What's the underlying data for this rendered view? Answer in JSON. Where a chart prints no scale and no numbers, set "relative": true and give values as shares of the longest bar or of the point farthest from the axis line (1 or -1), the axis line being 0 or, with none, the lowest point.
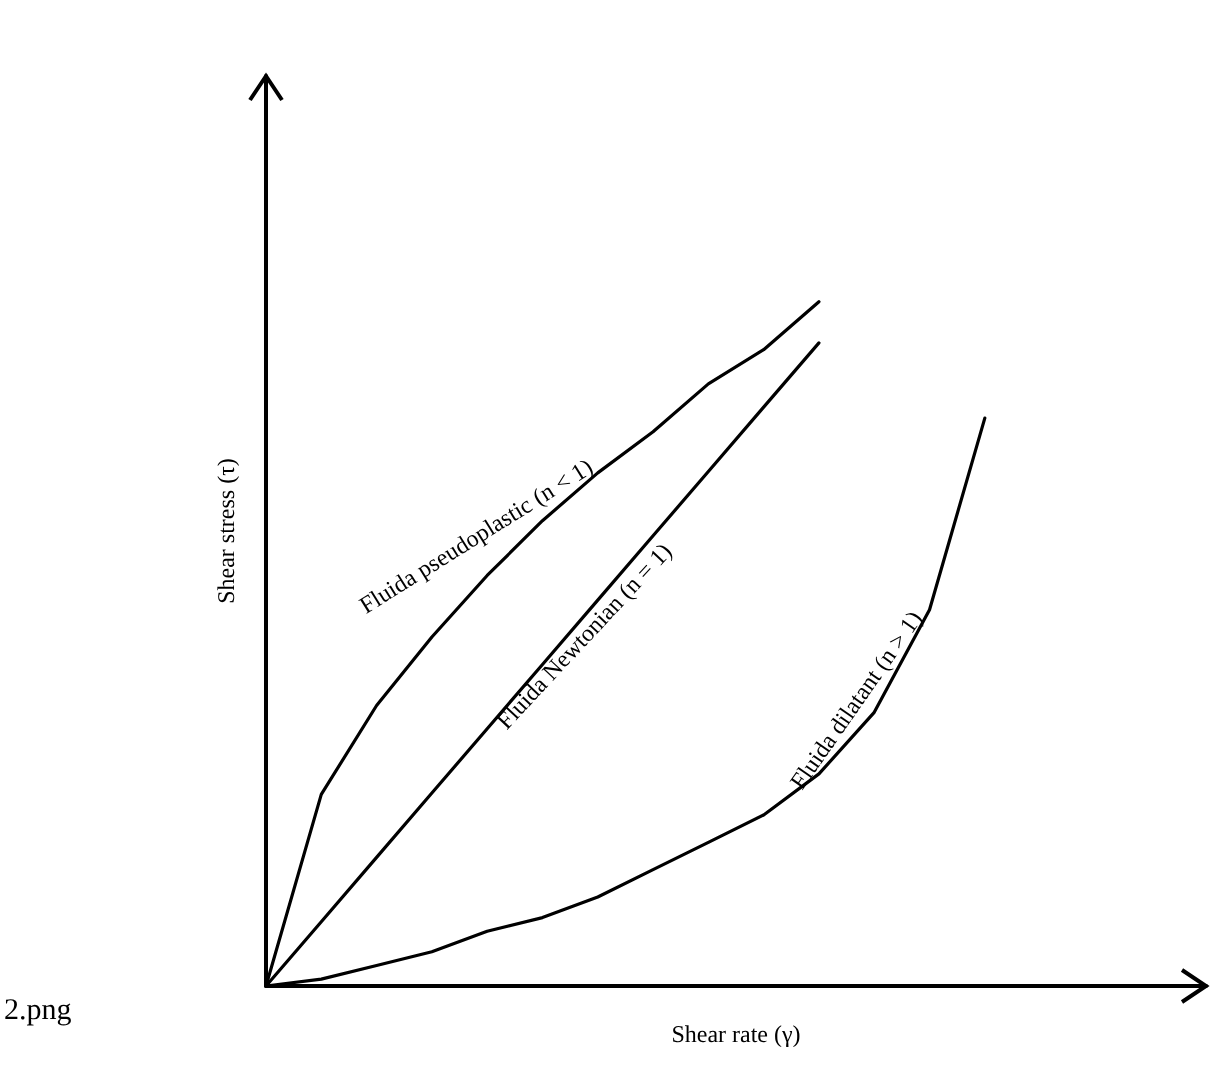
{
  "chart_data": {
    "type": "line",
    "relative": true,
    "xlabel": "Shear rate (γ)",
    "ylabel": "Shear stress (τ)",
    "grid": false,
    "marker": "none",
    "line_style": "solid",
    "categories": [
      null,
      null,
      null,
      null,
      null,
      null,
      null,
      null,
      null,
      null,
      null,
      null,
      null,
      null,
      null,
      null,
      null,
      null
    ],
    "series": [
      {
        "values": [
          0,
          0.28,
          0.41,
          0.51,
          0.6,
          0.68,
          0.75,
          0.81,
          0.88,
          0.93,
          1,
          null,
          null,
          null,
          null,
          null,
          null,
          null
        ],
        "color": "#000000"
      },
      {
        "values": [
          0,
          0.094,
          0.188,
          0.282,
          0.376,
          0.47,
          0.564,
          0.658,
          0.752,
          0.846,
          0.94,
          null,
          null,
          null,
          null,
          null,
          null,
          null
        ],
        "color": "#000000"
      },
      {
        "values": [
          0,
          0.01,
          0.03,
          0.05,
          0.08,
          0.1,
          0.13,
          0.17,
          0.21,
          0.25,
          0.31,
          0.4,
          0.55,
          0.83,
          null,
          null,
          null,
          null
        ],
        "color": "#000000"
      }
    ],
    "annotations": [
      "Fluida pseudoplastic (n < 1)",
      "Fluida Newtonian (n = 1)",
      "Fluida dilatant (n > 1)",
      "2.png"
    ]
  }
}
